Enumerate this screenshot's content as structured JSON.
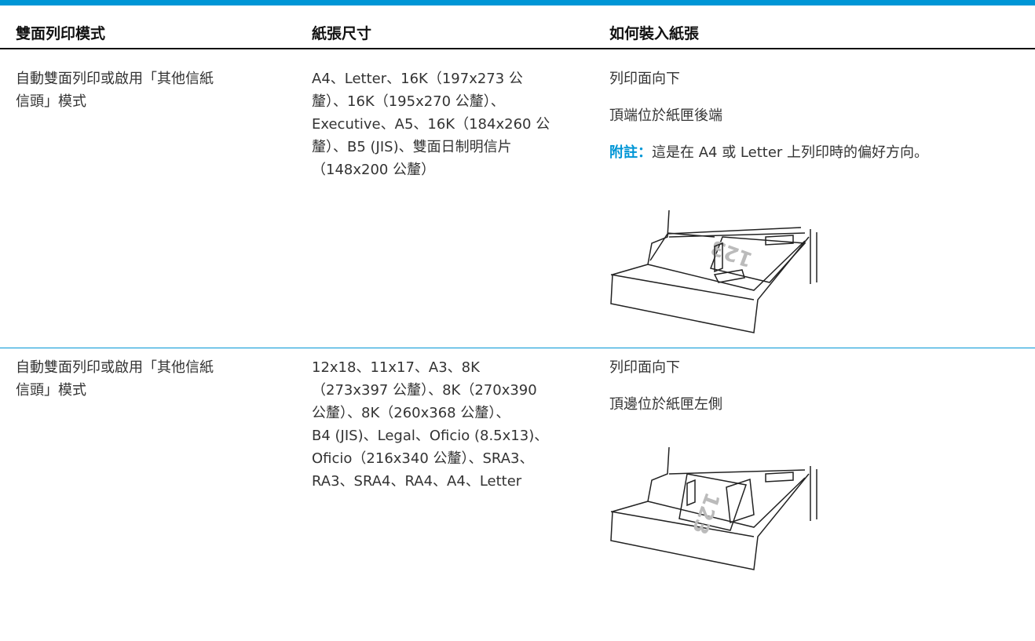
{
  "table": {
    "headers": [
      "雙面列印模式",
      "紙張尺寸",
      "如何裝入紙張"
    ],
    "rows": [
      {
        "mode": [
          "自動雙面列印或啟用「其他信紙",
          "信頭」模式"
        ],
        "sizes": [
          "A4、Letter、16K（197x273 公",
          "釐）、16K（195x270 公釐）、",
          "Executive、A5、16K（184x260 公",
          "釐）、B5 (JIS)、雙面日制明信片",
          "（148x200 公釐）"
        ],
        "load": [
          "列印面向下",
          "頂端位於紙匣後端"
        ],
        "note_label": "附註：",
        "note_text": "這是在 A4 或 Letter 上列印時的偏好方向。"
      },
      {
        "mode": [
          "自動雙面列印或啟用「其他信紙",
          "信頭」模式"
        ],
        "sizes": [
          "12x18、11x17、A3、8K",
          "（273x397 公釐）、8K（270x390",
          "公釐）、8K（260x368 公釐）、",
          "B4 (JIS)、Legal、Oficio (8.5x13)、",
          "Oficio（216x340 公釐）、SRA3、",
          "RA3、SRA4、RA4、A4、Letter"
        ],
        "load": [
          "列印面向下",
          "頂邊位於紙匣左側"
        ]
      }
    ]
  }
}
